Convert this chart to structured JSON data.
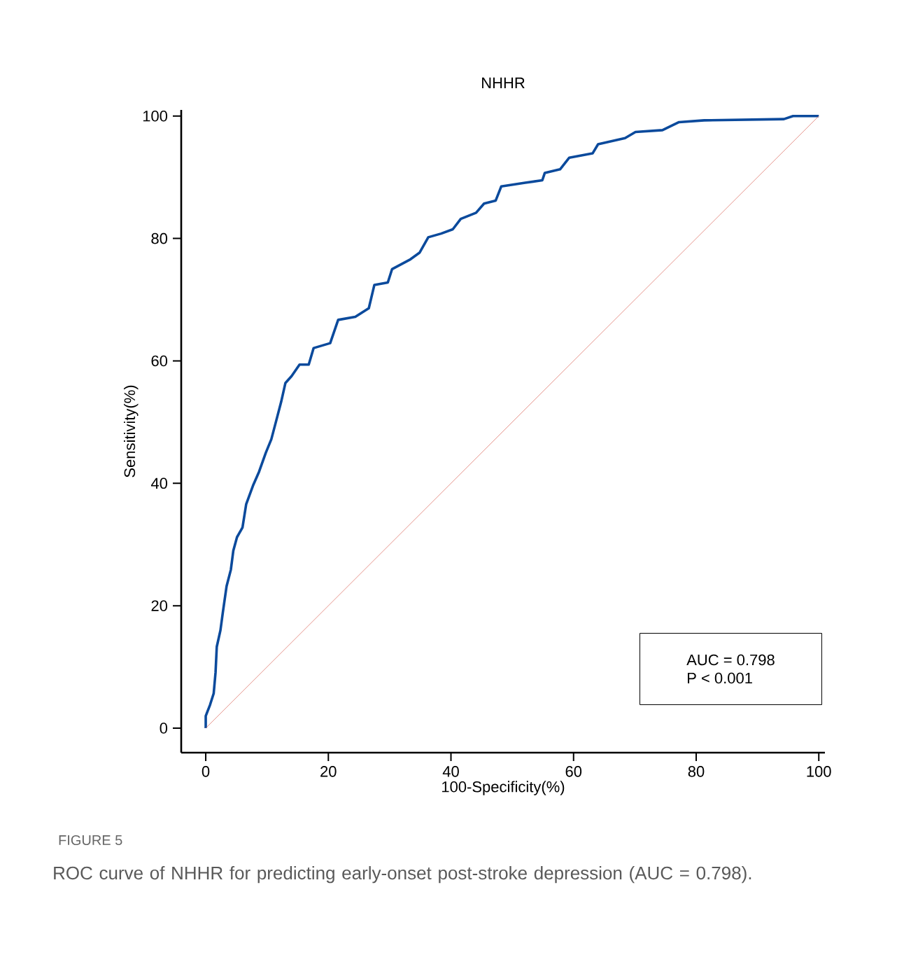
{
  "chart_data": {
    "type": "line",
    "title": "NHHR",
    "xlabel": "100-Specificity(%)",
    "ylabel": "Sensitivity(%)",
    "xlim": [
      -4,
      101
    ],
    "ylim": [
      -4,
      101
    ],
    "xticks": [
      0,
      20,
      40,
      60,
      80,
      100
    ],
    "yticks": [
      0,
      20,
      40,
      60,
      80,
      100
    ],
    "series": [
      {
        "color": "#0b4a9c",
        "x": [
          0,
          0,
          0.7,
          1.3,
          1.6,
          1.8,
          2.4,
          2.8,
          3.4,
          4.1,
          4.5,
          5.1,
          6,
          6.6,
          7.7,
          8.7,
          9.8,
          10.7,
          11.7,
          12.3,
          13,
          14,
          15.3,
          16.8,
          17.6,
          20.3,
          21.6,
          24.4,
          26.6,
          27.5,
          29.7,
          30.4,
          33.4,
          34.9,
          36.3,
          38.4,
          40.3,
          41.6,
          44.1,
          45.4,
          47.3,
          48.2,
          52.1,
          54.9,
          55.3,
          57.8,
          59.3,
          63.1,
          64,
          68.4,
          70.1,
          74.5,
          77.2,
          81.3,
          94.3,
          95.8,
          100
        ],
        "values": [
          0,
          2,
          3.8,
          5.7,
          9.1,
          13.3,
          16,
          19,
          23.2,
          25.9,
          29,
          31.2,
          32.8,
          36.6,
          39.6,
          41.9,
          45,
          47.2,
          51,
          53.3,
          56.4,
          57.5,
          59.4,
          59.4,
          62.1,
          62.9,
          66.7,
          67.2,
          68.6,
          72.4,
          72.8,
          75,
          76.6,
          77.7,
          80.2,
          80.8,
          81.5,
          83.2,
          84.2,
          85.7,
          86.2,
          88.5,
          89.1,
          89.5,
          90.7,
          91.3,
          93.2,
          93.9,
          95.4,
          96.4,
          97.4,
          97.7,
          99,
          99.3,
          99.5,
          100,
          100
        ]
      },
      {
        "color": "#e07a70",
        "x": [
          0,
          100
        ],
        "values": [
          0,
          100
        ]
      }
    ],
    "annotations": [
      "AUC = 0.798",
      "P < 0.001",
      "FIGURE 5",
      "ROC curve of NHHR for predicting early-onset post-stroke depression (AUC = 0.798)."
    ]
  }
}
